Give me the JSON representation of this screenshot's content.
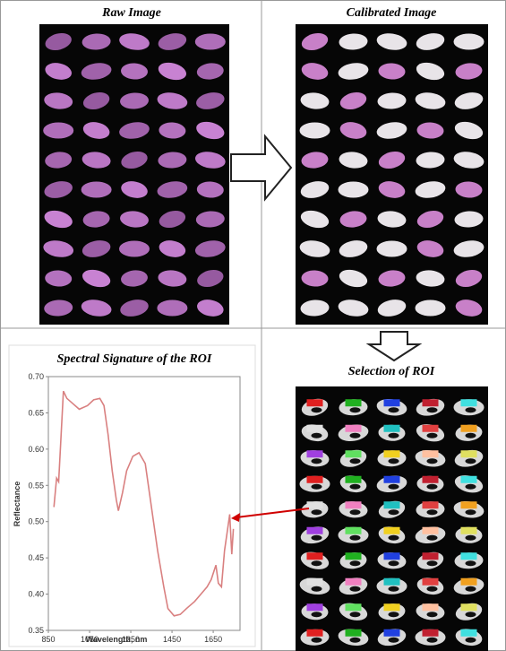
{
  "panels": {
    "raw": "Raw Image",
    "calibrated": "Calibrated Image",
    "roi": "Selection of ROI"
  },
  "chart_data": {
    "type": "line",
    "title": "Spectral Signature of the ROI",
    "x_label": "Wavelength, nm",
    "y_label": "Reflectance",
    "x": [
      877,
      890,
      900,
      923,
      940,
      960,
      1000,
      1040,
      1070,
      1100,
      1120,
      1140,
      1160,
      1180,
      1190,
      1210,
      1230,
      1260,
      1290,
      1320,
      1350,
      1380,
      1410,
      1430,
      1460,
      1490,
      1520,
      1560,
      1590,
      1620,
      1640,
      1663,
      1675,
      1690,
      1705,
      1720,
      1730,
      1740,
      1748
    ],
    "values": [
      0.52,
      0.56,
      0.555,
      0.68,
      0.67,
      0.665,
      0.655,
      0.66,
      0.668,
      0.67,
      0.66,
      0.62,
      0.57,
      0.53,
      0.515,
      0.54,
      0.57,
      0.59,
      0.595,
      0.58,
      0.52,
      0.46,
      0.41,
      0.38,
      0.37,
      0.372,
      0.38,
      0.39,
      0.4,
      0.41,
      0.42,
      0.44,
      0.415,
      0.41,
      0.46,
      0.49,
      0.51,
      0.455,
      0.49
    ],
    "color": "#d98080",
    "xlim": [
      850,
      1780
    ],
    "xticks": [
      850,
      1050,
      1250,
      1450,
      1650
    ],
    "ylim": [
      0.35,
      0.7
    ],
    "yticks": [
      0.35,
      {
        "value": 0.4,
        "label": "0.40"
      },
      0.45,
      {
        "value": 0.5,
        "label": "0.50"
      },
      0.55,
      {
        "value": 0.6,
        "label": "0.60"
      },
      0.65,
      {
        "value": 0.7,
        "label": "0.70"
      }
    ]
  }
}
